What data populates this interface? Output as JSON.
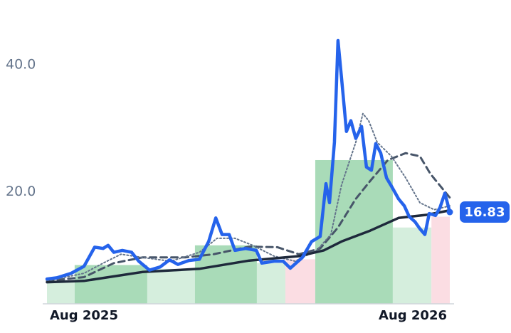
{
  "chart_data": {
    "type": "line",
    "xlim": [
      -1.35,
      13.35
    ],
    "ylim": [
      2.4,
      47
    ],
    "xticks": [
      {
        "value": 0,
        "label": "Aug 2025"
      },
      {
        "value": 12,
        "label": "Aug 2026"
      }
    ],
    "yticks": [
      {
        "value": 20,
        "label": "20.0"
      },
      {
        "value": 40,
        "label": "40.0"
      }
    ],
    "grid": false,
    "regions": {
      "x0": [
        -1.35,
        -0.34,
        2.31,
        4.05,
        6.31,
        7.35,
        8.44,
        11.27,
        12.68
      ],
      "x1": [
        -0.34,
        2.31,
        4.05,
        6.31,
        7.35,
        8.44,
        11.27,
        12.68,
        13.35
      ],
      "values": [
        5.8,
        8.5,
        7.9,
        11.6,
        8.8,
        9.4,
        25,
        14.4,
        16.1
      ],
      "colors": [
        "#d5eedd",
        "#a9dbb8",
        "#d5eedd",
        "#a9dbb8",
        "#d5eedd",
        "#fbdde3",
        "#a9dbb8",
        "#d5eedd",
        "#fbdde3"
      ]
    },
    "series": [
      {
        "color": "#475569",
        "style": "dashed",
        "width": 3,
        "x": [
          -1.35,
          0,
          1.09,
          2.13,
          3.69,
          4.73,
          6.03,
          7.06,
          7.84,
          8.62,
          9.27,
          9.92,
          10.44,
          11.09,
          11.74,
          12.26,
          12.65,
          13.35
        ],
        "values": [
          6.0,
          6.6,
          8.8,
          9.7,
          9.7,
          10.2,
          11.4,
          11.3,
          10.2,
          11.1,
          14.4,
          18.9,
          21.7,
          25.0,
          26.1,
          25.6,
          22.8,
          19.1
        ]
      },
      {
        "color": "#64748b",
        "style": "dotted",
        "width": 2,
        "x": [
          -1.35,
          0,
          0.7,
          1.35,
          2.13,
          3.17,
          4.21,
          4.86,
          5.51,
          6.16,
          6.94,
          7.71,
          8.49,
          9.01,
          9.4,
          9.92,
          10.18,
          10.39,
          10.7,
          11.22,
          11.74,
          12.26,
          12.78,
          13.35
        ],
        "values": [
          6.0,
          7.2,
          8.8,
          10.2,
          9.7,
          9.1,
          10.5,
          12.7,
          12.7,
          11.6,
          9.9,
          9.1,
          10.8,
          13.3,
          21.1,
          27.8,
          32.3,
          31.2,
          27.8,
          25.6,
          22.2,
          18.3,
          17.2,
          17.8
        ]
      },
      {
        "color": "#1e293b",
        "style": "solid",
        "width": 3.5,
        "x": [
          -1.35,
          0,
          2.13,
          4.21,
          6.03,
          7.84,
          8.75,
          9.4,
          10.44,
          11.48,
          12.52,
          13.35
        ],
        "values": [
          5.8,
          6.0,
          7.4,
          7.9,
          9.2,
          9.9,
          10.8,
          12.2,
          13.9,
          15.9,
          16.4,
          17.1
        ]
      },
      {
        "color": "#2563eb",
        "style": "solid",
        "width": 4.5,
        "x": [
          -1.35,
          -0.99,
          -0.47,
          0,
          0.39,
          0.7,
          0.88,
          1.09,
          1.4,
          1.74,
          2.0,
          2.39,
          2.78,
          3.12,
          3.43,
          3.82,
          4.21,
          4.55,
          4.81,
          5.04,
          5.3,
          5.51,
          5.9,
          6.29,
          6.49,
          6.94,
          7.27,
          7.53,
          7.97,
          8.31,
          8.62,
          8.83,
          8.96,
          9.14,
          9.27,
          9.4,
          9.58,
          9.74,
          9.92,
          10.13,
          10.31,
          10.49,
          10.65,
          10.83,
          11.04,
          11.22,
          11.48,
          11.69,
          11.87,
          12.08,
          12.26,
          12.44,
          12.6,
          12.83,
          12.99,
          13.17,
          13.35
        ],
        "values": [
          6.3,
          6.5,
          7.2,
          8.3,
          11.3,
          11.1,
          11.6,
          10.5,
          10.8,
          10.5,
          9.1,
          7.7,
          8.2,
          9.3,
          8.6,
          9.2,
          9.4,
          12.2,
          15.9,
          13.3,
          13.3,
          10.8,
          11.1,
          10.8,
          8.8,
          9.1,
          9.1,
          8.0,
          9.7,
          12.2,
          13.0,
          21.3,
          18.3,
          27.8,
          43.8,
          37.9,
          29.5,
          31.2,
          28.4,
          30.3,
          23.9,
          23.4,
          27.6,
          26.1,
          22.2,
          20.9,
          18.9,
          17.8,
          16.1,
          15.3,
          14.2,
          13.3,
          16.6,
          16.3,
          17.5,
          19.8,
          16.83
        ]
      }
    ]
  }
}
